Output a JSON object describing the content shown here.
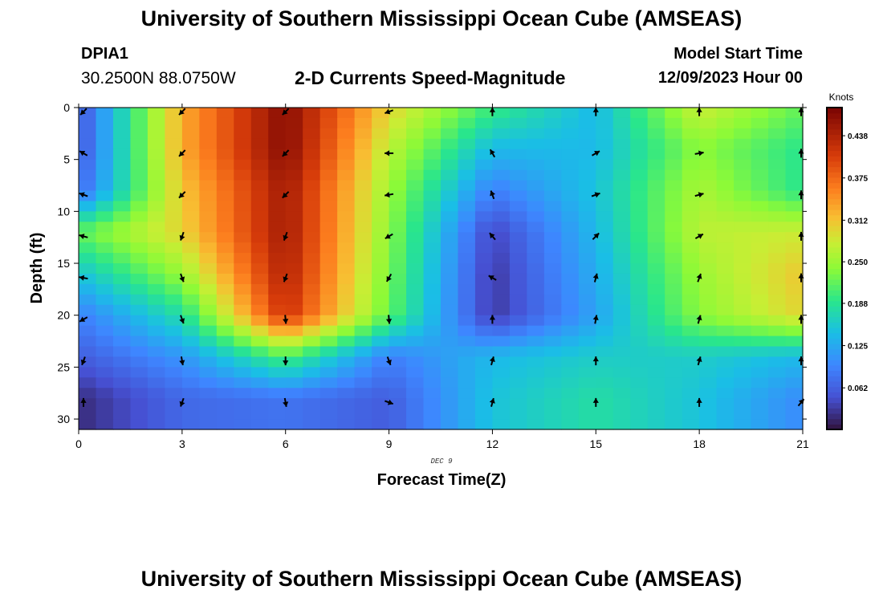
{
  "header": {
    "title": "University of Southern Mississippi Ocean Cube (AMSEAS)",
    "station": "DPIA1",
    "coordinates": "30.2500N  88.0750W",
    "variable_title": "2-D Currents Speed-Magnitude",
    "model_start_label": "Model Start Time",
    "model_start_value": "12/09/2023 Hour 00"
  },
  "footer": {
    "title": "University of Southern Mississippi Ocean Cube (AMSEAS)"
  },
  "chart_data": {
    "type": "heatmap",
    "title": "2-D Currents Speed-Magnitude",
    "xlabel": "Forecast Time(Z)",
    "ylabel": "Depth (ft)",
    "date_label": "DEC 9",
    "xlim": [
      0,
      21
    ],
    "ylim": [
      31,
      0
    ],
    "x_ticks": [
      0,
      3,
      6,
      9,
      12,
      15,
      18,
      21
    ],
    "y_ticks": [
      0,
      5,
      10,
      15,
      20,
      25,
      30
    ],
    "colorbar": {
      "unit": "Knots",
      "range": [
        0,
        0.48
      ],
      "ticks": [
        0.062,
        0.125,
        0.188,
        0.25,
        0.312,
        0.375,
        0.438
      ],
      "tick_labels": [
        "0.062",
        "0.125",
        "0.188",
        "0.250",
        "0.312",
        "0.375",
        "0.438"
      ]
    },
    "hours": [
      0,
      3,
      6,
      9,
      12,
      15,
      18,
      21
    ],
    "depths_ft": [
      0,
      4,
      8,
      12,
      16,
      20,
      24,
      28
    ],
    "speed_knots": [
      [
        0.05,
        0.33,
        0.47,
        0.3,
        0.2,
        0.14,
        0.28,
        0.22
      ],
      [
        0.05,
        0.33,
        0.47,
        0.27,
        0.14,
        0.14,
        0.24,
        0.19
      ],
      [
        0.07,
        0.31,
        0.45,
        0.25,
        0.09,
        0.15,
        0.26,
        0.19
      ],
      [
        0.22,
        0.3,
        0.45,
        0.24,
        0.04,
        0.14,
        0.27,
        0.28
      ],
      [
        0.15,
        0.25,
        0.44,
        0.23,
        0.03,
        0.13,
        0.25,
        0.31
      ],
      [
        0.09,
        0.18,
        0.42,
        0.22,
        0.03,
        0.12,
        0.24,
        0.3
      ],
      [
        0.06,
        0.11,
        0.21,
        0.09,
        0.14,
        0.16,
        0.16,
        0.14
      ],
      [
        0.02,
        0.07,
        0.08,
        0.06,
        0.15,
        0.18,
        0.15,
        0.1
      ]
    ],
    "current_direction_deg": [
      [
        225,
        225,
        225,
        250,
        0,
        0,
        0,
        0
      ],
      [
        300,
        225,
        225,
        270,
        330,
        60,
        80,
        0
      ],
      [
        290,
        225,
        225,
        260,
        340,
        70,
        75,
        0
      ],
      [
        285,
        200,
        200,
        240,
        320,
        45,
        60,
        0
      ],
      [
        280,
        160,
        200,
        210,
        300,
        15,
        20,
        0
      ],
      [
        240,
        160,
        175,
        175,
        0,
        10,
        15,
        0
      ],
      [
        200,
        170,
        180,
        160,
        15,
        0,
        15,
        0
      ],
      [
        0,
        200,
        170,
        110,
        15,
        0,
        0,
        40
      ]
    ]
  }
}
